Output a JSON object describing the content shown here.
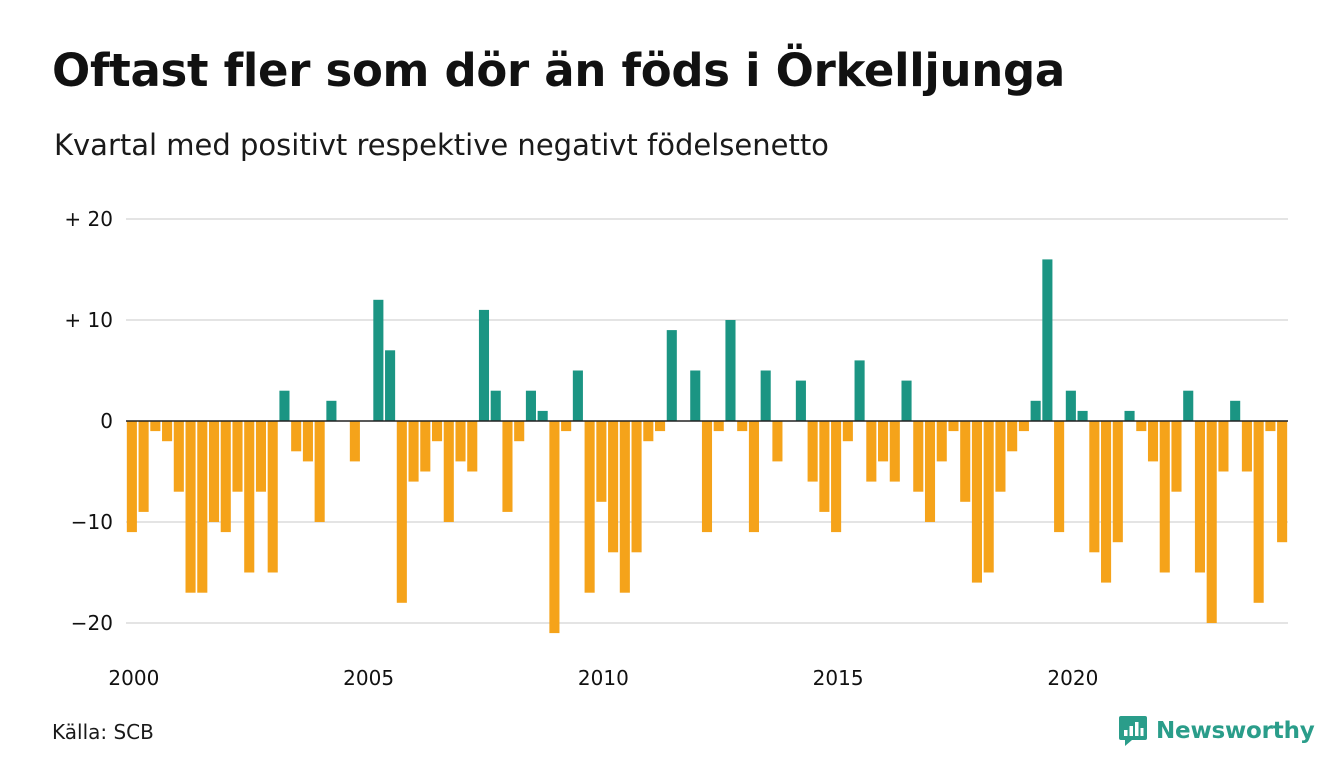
{
  "header": {
    "title": "Oftast fler som dör än föds i Örkelljunga",
    "subtitle": "Kvartal med positivt respektive negativt födelsenetto"
  },
  "footer": {
    "source": "Källa: SCB",
    "brand": "Newsworthy"
  },
  "colors": {
    "positive": "#1b9583",
    "negative": "#f5a31a",
    "grid": "#dcdcdc",
    "brand": "#2a9d8a"
  },
  "chart_data": {
    "type": "bar",
    "title": "Oftast fler som dör än föds i Örkelljunga",
    "subtitle": "Kvartal med positivt respektive negativt födelsenetto",
    "x_start": "2000 Q1",
    "x_tick_labels": [
      "2000",
      "2005",
      "2010",
      "2015",
      "2020"
    ],
    "y_tick_labels": [
      "−20",
      "−10",
      "0",
      "+ 10",
      "+ 20"
    ],
    "y_ticks": [
      -20,
      -10,
      0,
      10,
      20
    ],
    "ylim": [
      -21,
      20
    ],
    "grid": true,
    "values": [
      -11,
      -9,
      -1,
      -2,
      -7,
      -17,
      -17,
      -10,
      -11,
      -7,
      -15,
      -7,
      -15,
      3,
      -3,
      -4,
      -10,
      2,
      0,
      -4,
      0,
      12,
      7,
      -18,
      -6,
      -5,
      -2,
      -10,
      -4,
      -5,
      11,
      3,
      -9,
      -2,
      3,
      1,
      -21,
      -1,
      5,
      -17,
      -8,
      -13,
      -17,
      -13,
      -2,
      -1,
      9,
      0,
      5,
      -11,
      -1,
      10,
      -1,
      -11,
      5,
      -4,
      0,
      4,
      -6,
      -9,
      -11,
      -2,
      6,
      -6,
      -4,
      -6,
      4,
      -7,
      -10,
      -4,
      -1,
      -8,
      -16,
      -15,
      -7,
      -3,
      -1,
      2,
      16,
      -11,
      3,
      1,
      -13,
      -16,
      -12,
      1,
      -1,
      -4,
      -15,
      -7,
      3,
      -15,
      -20,
      -5,
      2,
      -5,
      -18,
      -1,
      -12
    ]
  }
}
